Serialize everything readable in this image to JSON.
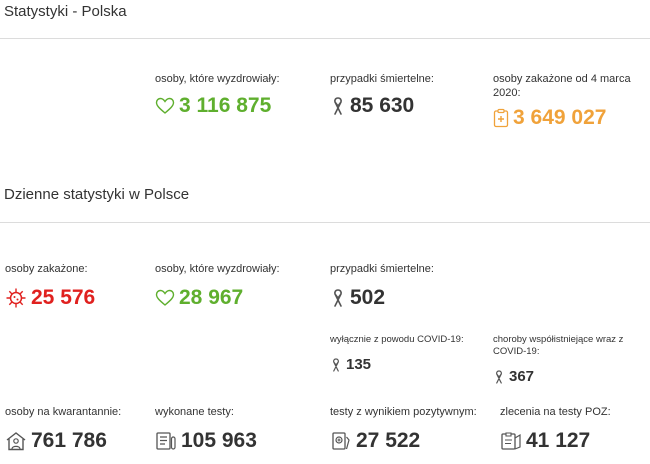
{
  "sections": {
    "poland": {
      "title": "Statystyki - Polska"
    },
    "daily": {
      "title": "Dzienne statystyki w Polsce"
    }
  },
  "colors": {
    "recovered": "#5faf2e",
    "infected": "#e0211f",
    "total": "#f0a23a",
    "neutral": "#333333"
  },
  "totals": {
    "recovered": {
      "label": "osoby, które wyzdrowiały:",
      "value": "3 116 875",
      "icon": "heart-icon"
    },
    "deaths": {
      "label": "przypadki śmiertelne:",
      "value": "85 630",
      "icon": "ribbon-icon"
    },
    "infected": {
      "label": "osoby zakażone od 4 marca 2020:",
      "value": "3 649 027",
      "icon": "clipboard-icon"
    }
  },
  "daily": {
    "infected": {
      "label": "osoby zakażone:",
      "value": "25 576",
      "icon": "virus-icon"
    },
    "recovered": {
      "label": "osoby, które wyzdrowiały:",
      "value": "28 967",
      "icon": "heart-icon"
    },
    "deaths": {
      "label": "przypadki śmiertelne:",
      "value": "502",
      "icon": "ribbon-icon"
    },
    "deaths_covid_only": {
      "label": "wyłącznie z powodu COVID-19:",
      "value": "135",
      "icon": "ribbon-icon"
    },
    "deaths_comorbid": {
      "label": "choroby współistniejące wraz z COVID-19:",
      "value": "367",
      "icon": "ribbon-icon"
    },
    "quarantine": {
      "label": "osoby na kwarantannie:",
      "value": "761 786",
      "icon": "house-person-icon"
    },
    "tests": {
      "label": "wykonane testy:",
      "value": "105 963",
      "icon": "test-list-icon"
    },
    "positive_tests": {
      "label": "testy z wynikiem pozytywnym:",
      "value": "27 522",
      "icon": "positive-test-icon"
    },
    "poz_orders": {
      "label": "zlecenia na testy POZ:",
      "value": "41 127",
      "icon": "poz-order-icon"
    }
  }
}
